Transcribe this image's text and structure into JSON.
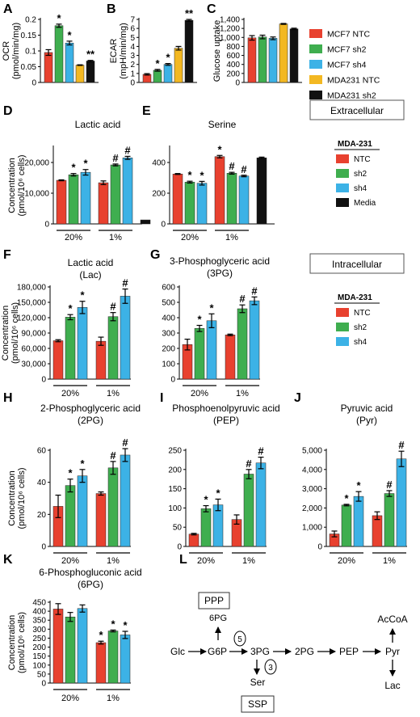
{
  "colors": {
    "red": "#e8412f",
    "green": "#3fae4f",
    "blue": "#3cb2e6",
    "yellow": "#f3b822",
    "black": "#111111"
  },
  "legend_top": [
    {
      "label": "MCF7 NTC",
      "color": "#e8412f"
    },
    {
      "label": "MCF7 sh2",
      "color": "#3fae4f"
    },
    {
      "label": "MCF7 sh4",
      "color": "#3cb2e6"
    },
    {
      "label": "MDA231 NTC",
      "color": "#f3b822"
    },
    {
      "label": "MDA231 sh2",
      "color": "#111111"
    }
  ],
  "box_extracellular": "Extracellular",
  "box_intracellular": "Intracellular",
  "legend_mda_ext": {
    "title": "MDA-231",
    "items": [
      {
        "label": "NTC",
        "color": "#e8412f"
      },
      {
        "label": "sh2",
        "color": "#3fae4f"
      },
      {
        "label": "sh4",
        "color": "#3cb2e6"
      },
      {
        "label": "Media",
        "color": "#111111"
      }
    ]
  },
  "legend_mda_int": {
    "title": "MDA-231",
    "items": [
      {
        "label": "NTC",
        "color": "#e8412f"
      },
      {
        "label": "sh2",
        "color": "#3fae4f"
      },
      {
        "label": "sh4",
        "color": "#3cb2e6"
      }
    ]
  },
  "chart_data": [
    {
      "id": "A",
      "type": "bar",
      "ylabel": [
        "OCR",
        "(pmol/min/mg)"
      ],
      "ylim": [
        0,
        0.2
      ],
      "yticks": [
        0,
        0.05,
        0.1,
        0.15,
        0.2
      ],
      "ytick_labels": [
        "0",
        "0.05",
        "0.1",
        "0.15",
        "0.2"
      ],
      "values": [
        0.095,
        0.18,
        0.125,
        0.055,
        0.068
      ],
      "errors": [
        0.009,
        0.005,
        0.006,
        0.001,
        0.002
      ],
      "marks": [
        "",
        "*",
        "*",
        "",
        "**"
      ],
      "colors": [
        "red",
        "green",
        "blue",
        "yellow",
        "black"
      ]
    },
    {
      "id": "B",
      "type": "bar",
      "ylabel": [
        "ECAR",
        "(mpH/min/mg)"
      ],
      "ylim": [
        0,
        7
      ],
      "yticks": [
        0,
        1,
        2,
        3,
        4,
        5,
        6,
        7
      ],
      "ytick_labels": [
        "0",
        "1",
        "2",
        "3",
        "4",
        "5",
        "6",
        "7"
      ],
      "values": [
        0.9,
        1.35,
        2.0,
        3.8,
        6.9
      ],
      "errors": [
        0.08,
        0.1,
        0.1,
        0.2,
        0.1
      ],
      "marks": [
        "",
        "*",
        "*",
        "",
        "**"
      ],
      "colors": [
        "red",
        "green",
        "blue",
        "yellow",
        "black"
      ]
    },
    {
      "id": "C",
      "type": "bar",
      "ylabel": [
        "Glucose uptake"
      ],
      "ylim": [
        0,
        1400
      ],
      "yticks": [
        0,
        200,
        400,
        600,
        800,
        1000,
        1200,
        1400
      ],
      "ytick_labels": [
        "0",
        "200",
        "400",
        "600",
        "800",
        "1,000",
        "1,200",
        "1,400"
      ],
      "values": [
        990,
        1010,
        980,
        1300,
        1190
      ],
      "errors": [
        50,
        40,
        30,
        10,
        15
      ],
      "marks": [
        "",
        "",
        "",
        "",
        ""
      ],
      "colors": [
        "red",
        "green",
        "blue",
        "yellow",
        "black"
      ]
    },
    {
      "id": "D",
      "type": "bar",
      "title": [
        "Lactic acid"
      ],
      "ylabel": [
        "Concentration",
        "(pmol/10⁶ cells)"
      ],
      "ylim": [
        0,
        25000
      ],
      "yticks": [
        0,
        10000,
        20000
      ],
      "ytick_labels": [
        "0",
        "10,000",
        "20,000"
      ],
      "groups": [
        {
          "label": "20%",
          "values": [
            14200,
            16000,
            16800
          ],
          "errors": [
            150,
            400,
            900
          ],
          "marks": [
            "",
            "*",
            "*"
          ],
          "colors": [
            "red",
            "green",
            "blue"
          ]
        },
        {
          "label": "1%",
          "values": [
            13400,
            19200,
            21500
          ],
          "errors": [
            600,
            300,
            500
          ],
          "marks": [
            "",
            "#",
            "#"
          ],
          "colors": [
            "red",
            "green",
            "blue"
          ]
        },
        {
          "label": "",
          "values": [
            1300
          ],
          "errors": [
            0
          ],
          "marks": [
            ""
          ],
          "colors": [
            "black"
          ]
        }
      ]
    },
    {
      "id": "E",
      "type": "bar",
      "title": [
        "Serine"
      ],
      "ylim": [
        0,
        500
      ],
      "yticks": [
        0,
        200,
        400
      ],
      "ytick_labels": [
        "0",
        "200",
        "400"
      ],
      "groups": [
        {
          "label": "20%",
          "values": [
            325,
            272,
            265
          ],
          "errors": [
            3,
            6,
            12
          ],
          "marks": [
            "",
            "*",
            "*"
          ],
          "colors": [
            "red",
            "green",
            "blue"
          ]
        },
        {
          "label": "1%",
          "values": [
            438,
            330,
            312
          ],
          "errors": [
            8,
            6,
            5
          ],
          "marks": [
            "*",
            "#",
            "#"
          ],
          "colors": [
            "red",
            "green",
            "blue"
          ]
        },
        {
          "label": "",
          "values": [
            430
          ],
          "errors": [
            5
          ],
          "marks": [
            ""
          ],
          "colors": [
            "black"
          ]
        }
      ]
    },
    {
      "id": "F",
      "type": "bar",
      "title": [
        "Lactic acid",
        "(Lac)"
      ],
      "ylabel": [
        "Concentration",
        "(pmol/10⁶ cells)"
      ],
      "ylim": [
        0,
        180000
      ],
      "yticks": [
        0,
        30000,
        60000,
        90000,
        120000,
        150000,
        180000
      ],
      "ytick_labels": [
        "0",
        "30,000",
        "60,000",
        "90,000",
        "120,000",
        "150,000",
        "180,000"
      ],
      "groups": [
        {
          "label": "20%",
          "values": [
            75000,
            121000,
            140000
          ],
          "errors": [
            2000,
            5000,
            12000
          ],
          "marks": [
            "",
            "*",
            "*"
          ],
          "colors": [
            "red",
            "green",
            "blue"
          ]
        },
        {
          "label": "1%",
          "values": [
            74000,
            122000,
            162000
          ],
          "errors": [
            8000,
            8000,
            14000
          ],
          "marks": [
            "",
            "#",
            "#"
          ],
          "colors": [
            "red",
            "green",
            "blue"
          ]
        }
      ]
    },
    {
      "id": "G",
      "type": "bar",
      "title": [
        "3-Phosphoglyceric acid",
        "(3PG)"
      ],
      "ylim": [
        0,
        600
      ],
      "yticks": [
        0,
        100,
        200,
        300,
        400,
        500,
        600
      ],
      "ytick_labels": [
        "0",
        "100",
        "200",
        "300",
        "400",
        "500",
        "600"
      ],
      "groups": [
        {
          "label": "20%",
          "values": [
            225,
            330,
            380
          ],
          "errors": [
            35,
            20,
            45
          ],
          "marks": [
            "",
            "*",
            "*"
          ],
          "colors": [
            "red",
            "green",
            "blue"
          ]
        },
        {
          "label": "1%",
          "values": [
            288,
            458,
            510
          ],
          "errors": [
            5,
            25,
            25
          ],
          "marks": [
            "",
            "#",
            "#"
          ],
          "colors": [
            "red",
            "green",
            "blue"
          ]
        }
      ]
    },
    {
      "id": "H",
      "type": "bar",
      "title": [
        "2-Phosphoglyceric acid",
        "(2PG)"
      ],
      "ylabel": [
        "Concentration",
        "(pmol/10⁶ cells)"
      ],
      "ylim": [
        0,
        60
      ],
      "yticks": [
        0,
        20,
        40,
        60
      ],
      "ytick_labels": [
        "0",
        "20",
        "40",
        "60"
      ],
      "groups": [
        {
          "label": "20%",
          "values": [
            25,
            38,
            44
          ],
          "errors": [
            7,
            4,
            4
          ],
          "marks": [
            "",
            "*",
            "*"
          ],
          "colors": [
            "red",
            "green",
            "blue"
          ]
        },
        {
          "label": "1%",
          "values": [
            33,
            49,
            57
          ],
          "errors": [
            1,
            4,
            4
          ],
          "marks": [
            "",
            "#",
            "#"
          ],
          "colors": [
            "red",
            "green",
            "blue"
          ]
        }
      ]
    },
    {
      "id": "I",
      "type": "bar",
      "title": [
        "Phosphoenolpyruvic acid",
        "(PEP)"
      ],
      "ylim": [
        0,
        250
      ],
      "yticks": [
        0,
        50,
        100,
        150,
        200,
        250
      ],
      "ytick_labels": [
        "0",
        "50",
        "100",
        "150",
        "200",
        "250"
      ],
      "groups": [
        {
          "label": "20%",
          "values": [
            32,
            98,
            108
          ],
          "errors": [
            2,
            8,
            15
          ],
          "marks": [
            "",
            "*",
            "*"
          ],
          "colors": [
            "red",
            "green",
            "blue"
          ]
        },
        {
          "label": "1%",
          "values": [
            70,
            188,
            217
          ],
          "errors": [
            12,
            12,
            15
          ],
          "marks": [
            "",
            "#",
            "#"
          ],
          "colors": [
            "red",
            "green",
            "blue"
          ]
        }
      ]
    },
    {
      "id": "J",
      "type": "bar",
      "title": [
        "Pyruvic acid",
        "(Pyr)"
      ],
      "ylim": [
        0,
        5000
      ],
      "yticks": [
        0,
        1000,
        2000,
        3000,
        4000,
        5000
      ],
      "ytick_labels": [
        "0",
        "1,000",
        "2,000",
        "3,000",
        "4,000",
        "5,000"
      ],
      "groups": [
        {
          "label": "20%",
          "values": [
            650,
            2150,
            2600
          ],
          "errors": [
            150,
            40,
            250
          ],
          "marks": [
            "",
            "*",
            "*"
          ],
          "colors": [
            "red",
            "green",
            "blue"
          ]
        },
        {
          "label": "1%",
          "values": [
            1600,
            2750,
            4550
          ],
          "errors": [
            200,
            150,
            400
          ],
          "marks": [
            "",
            "#",
            "#"
          ],
          "colors": [
            "red",
            "green",
            "blue"
          ]
        }
      ]
    },
    {
      "id": "K",
      "type": "bar",
      "title": [
        "6-Phosphogluconic acid",
        "(6PG)"
      ],
      "ylabel": [
        "Concentration",
        "(pmol/10⁶ cells)"
      ],
      "ylim": [
        0,
        450
      ],
      "yticks": [
        0,
        50,
        100,
        150,
        200,
        250,
        300,
        350,
        400,
        450
      ],
      "ytick_labels": [
        "0",
        "50",
        "100",
        "150",
        "200",
        "250",
        "300",
        "350",
        "400",
        "450"
      ],
      "groups": [
        {
          "label": "20%",
          "values": [
            412,
            368,
            415
          ],
          "errors": [
            30,
            25,
            20
          ],
          "marks": [
            "",
            "",
            ""
          ],
          "colors": [
            "red",
            "green",
            "blue"
          ]
        },
        {
          "label": "1%",
          "values": [
            225,
            290,
            268
          ],
          "errors": [
            8,
            5,
            20
          ],
          "marks": [
            "*",
            "*",
            "*"
          ],
          "colors": [
            "red",
            "green",
            "blue"
          ]
        }
      ]
    }
  ],
  "pathway": {
    "nodes": {
      "glc": "Glc",
      "g6p": "G6P",
      "pg3": "3PG",
      "pg2": "2PG",
      "pep": "PEP",
      "pyr": "Pyr",
      "acoa": "AcCoA",
      "lac": "Lac",
      "ser": "Ser",
      "pg6": "6PG",
      "ppp": "PPP",
      "ssp": "SSP"
    },
    "enzymes": [
      "5",
      "3"
    ]
  }
}
